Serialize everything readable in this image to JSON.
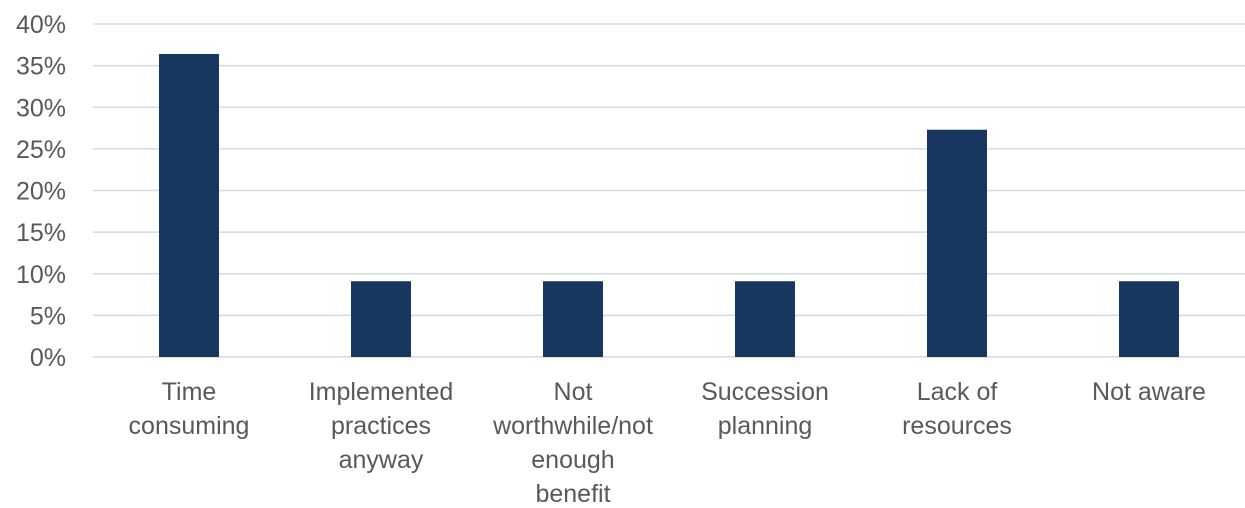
{
  "chart_data": {
    "type": "bar",
    "title": "",
    "xlabel": "",
    "ylabel": "",
    "categories": [
      [
        "Time",
        "consuming"
      ],
      [
        "Implemented",
        "practices",
        "anyway"
      ],
      [
        "Not",
        "worthwhile/not",
        "enough",
        "benefit"
      ],
      [
        "Succession",
        "planning"
      ],
      [
        "Lack of",
        "resources"
      ],
      [
        "Not aware"
      ]
    ],
    "values": [
      36.4,
      9.1,
      9.1,
      9.1,
      27.3,
      9.1
    ],
    "ylim": [
      0,
      40
    ],
    "yticks": [
      0,
      5,
      10,
      15,
      20,
      25,
      30,
      35,
      40
    ],
    "ytick_labels": [
      "0%",
      "5%",
      "10%",
      "15%",
      "20%",
      "25%",
      "30%",
      "35%",
      "40%"
    ],
    "grid": true,
    "legend": "none",
    "colors": {
      "bar": "#17375e",
      "grid": "#d9d9d9",
      "text": "#595959"
    }
  }
}
